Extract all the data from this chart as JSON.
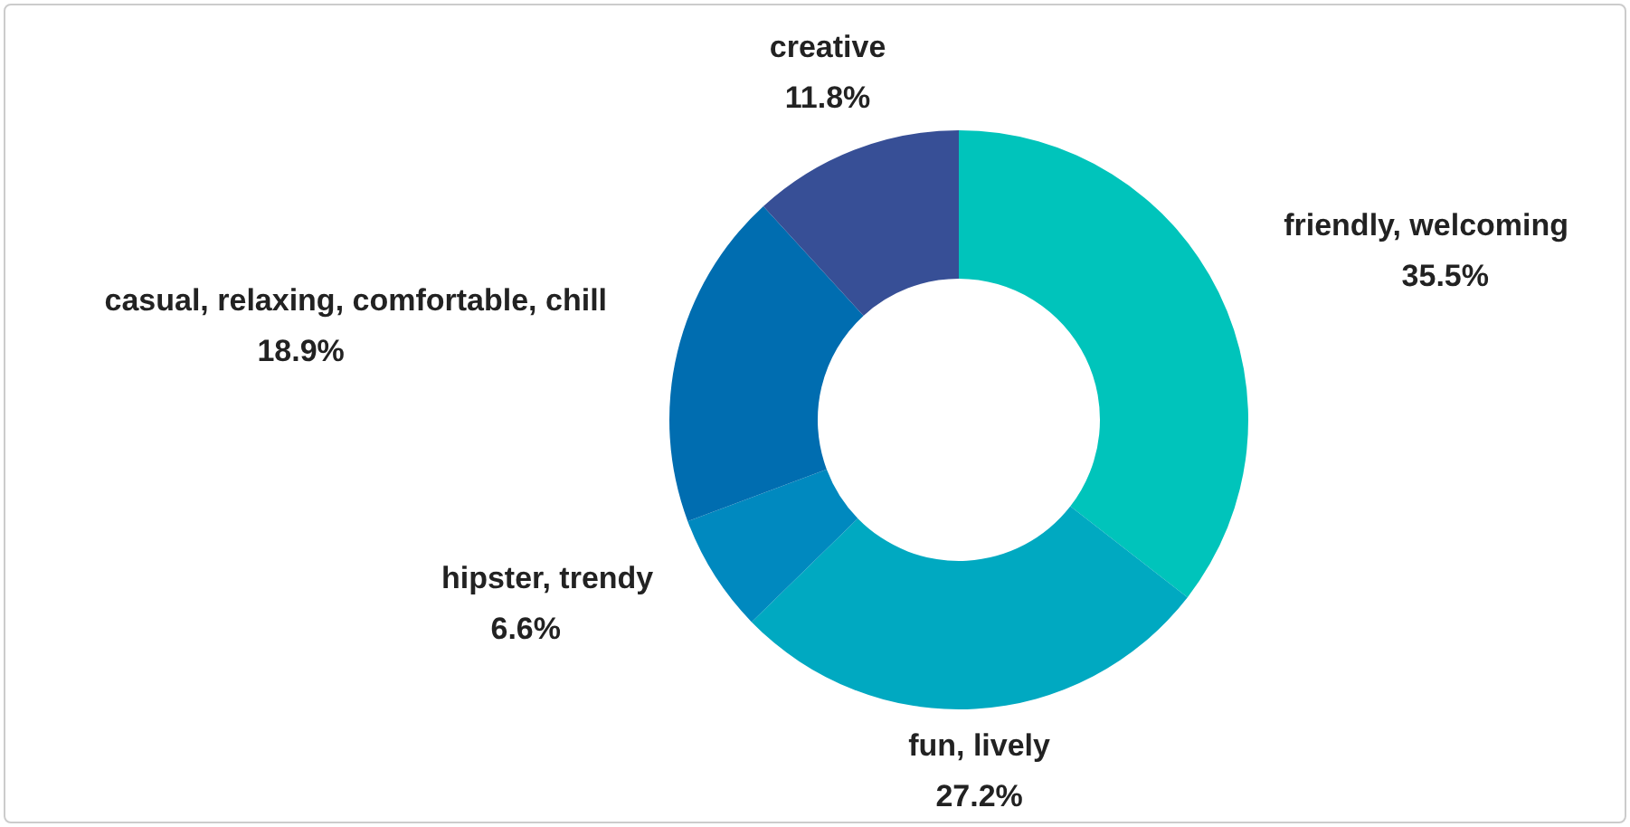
{
  "chart_data": {
    "type": "donut",
    "categories": [
      "friendly, welcoming",
      "fun, lively",
      "hipster, trendy",
      "casual, relaxing, comfortable, chill",
      "creative"
    ],
    "values": [
      35.5,
      27.2,
      6.6,
      18.9,
      11.8
    ],
    "value_labels": [
      "35.5%",
      "27.2%",
      "6.6%",
      "18.9%",
      "11.8%"
    ],
    "colors": [
      "#00c4bb",
      "#00a9c1",
      "#0089bf",
      "#006db0",
      "#374f96"
    ],
    "legend": false
  }
}
